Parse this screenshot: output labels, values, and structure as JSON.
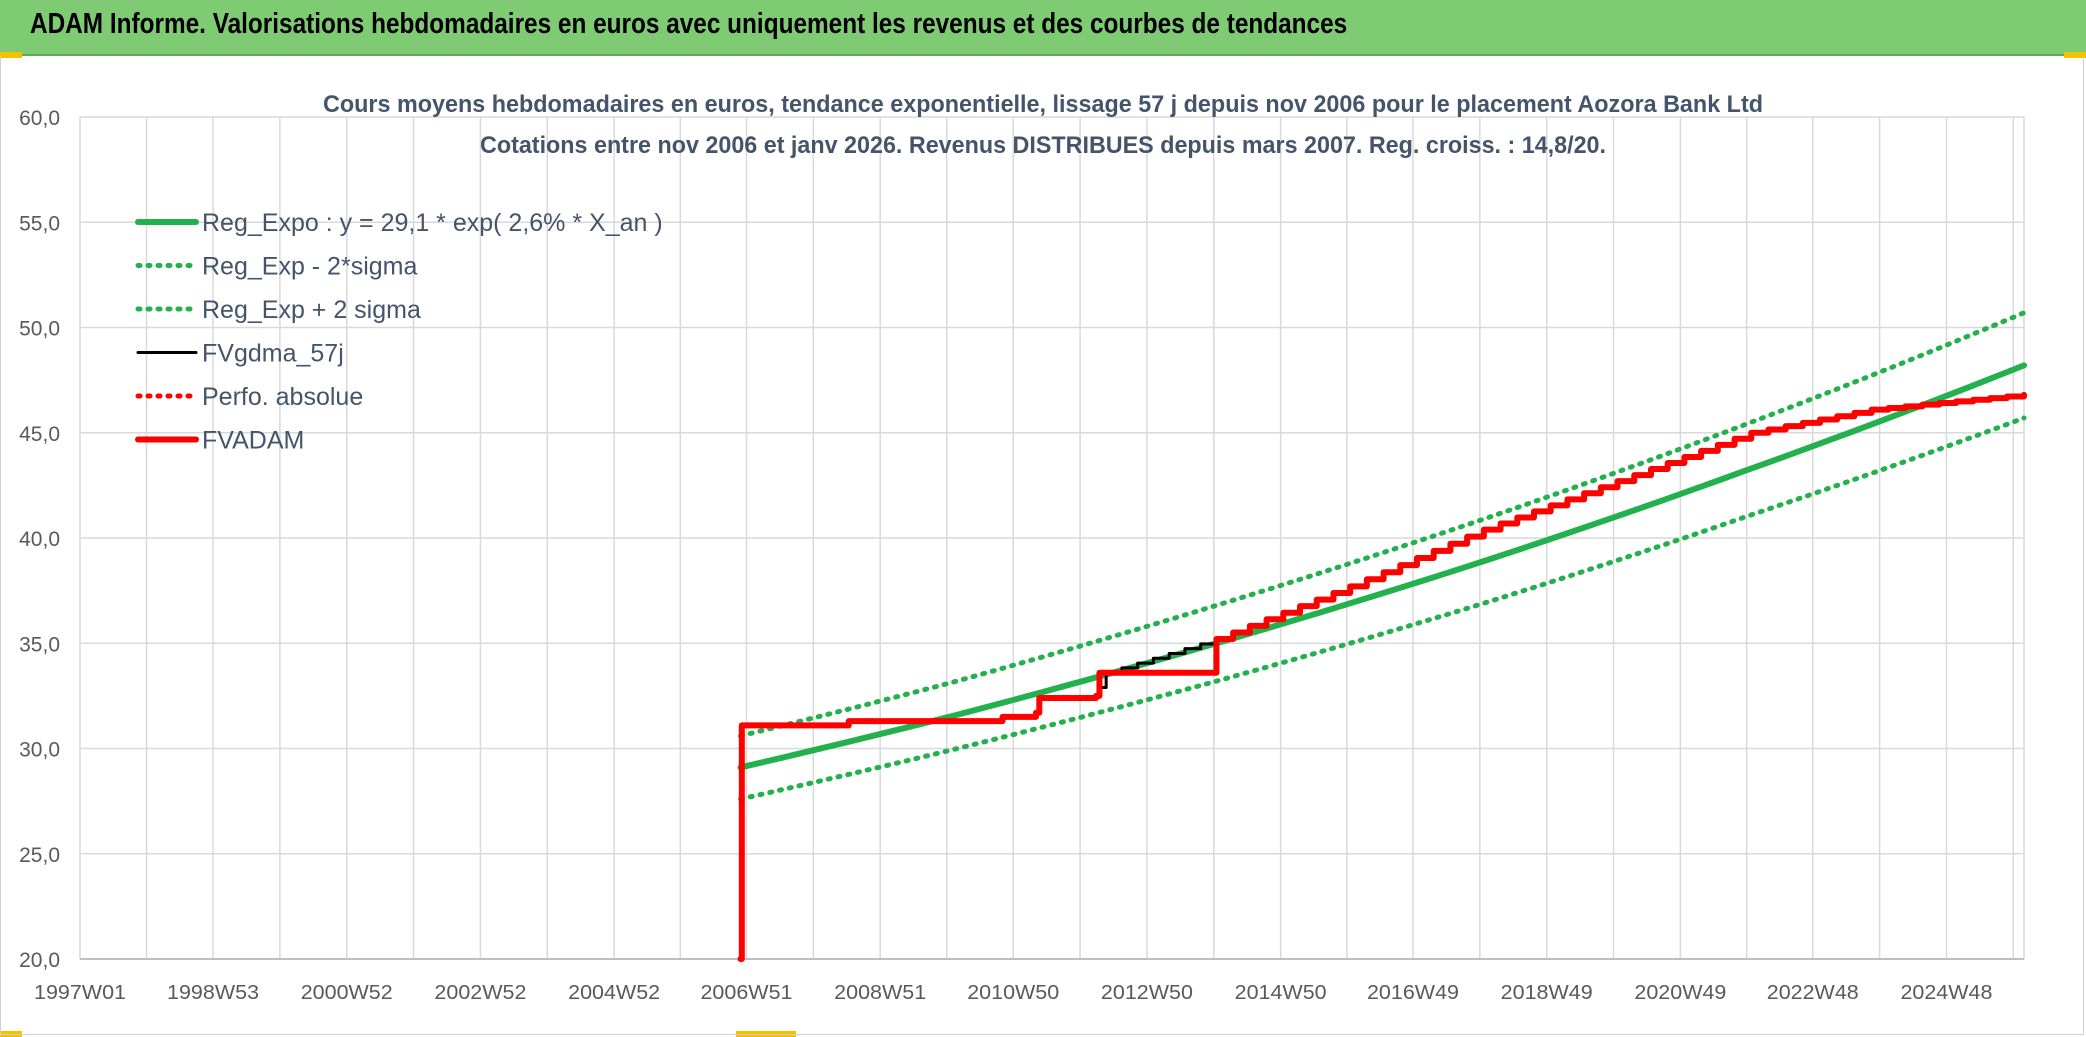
{
  "banner": {
    "title": "ADAM Informe. Valorisations hebdomadaires en euros avec uniquement les revenus et des courbes de tendances"
  },
  "colors": {
    "green": "#22b14c",
    "red": "#ff0000",
    "black": "#000000",
    "banner": "#7ecb73",
    "grid": "#d9d9d9"
  },
  "chart_data": {
    "type": "line",
    "title": "Cours moyens hebdomadaires en euros, tendance exponentielle, lissage 57 j depuis nov 2006 pour le placement Aozora Bank Ltd",
    "subtitle": "Cotations entre nov 2006 et janv 2026. Revenus DISTRIBUES depuis mars 2007. Reg. croiss. : 14,8/20.",
    "xlabel": "",
    "ylabel": "",
    "ylim": [
      20,
      60
    ],
    "xlim": [
      1997.0,
      2026.08
    ],
    "grid": true,
    "legend_position": "top-left",
    "y_ticks": [
      "60,0",
      "55,0",
      "50,0",
      "45,0",
      "40,0",
      "35,0",
      "30,0",
      "25,0",
      "20,0"
    ],
    "x_ticks": [
      {
        "label": "1997W01",
        "x": 1997.0
      },
      {
        "label": "1998W53",
        "x": 1998.99
      },
      {
        "label": "2000W52",
        "x": 2000.99
      },
      {
        "label": "2002W52",
        "x": 2002.99
      },
      {
        "label": "2004W52",
        "x": 2004.99
      },
      {
        "label": "2006W51",
        "x": 2006.97
      },
      {
        "label": "2008W51",
        "x": 2008.97
      },
      {
        "label": "2010W50",
        "x": 2010.96
      },
      {
        "label": "2012W50",
        "x": 2012.96
      },
      {
        "label": "2014W50",
        "x": 2014.96
      },
      {
        "label": "2016W49",
        "x": 2016.94
      },
      {
        "label": "2018W49",
        "x": 2018.94
      },
      {
        "label": "2020W49",
        "x": 2020.94
      },
      {
        "label": "2022W48",
        "x": 2022.92
      },
      {
        "label": "2024W48",
        "x": 2024.92
      }
    ],
    "series": [
      {
        "name": "Reg_Expo : y = 29,1 * exp( 2,6% *  X_an )",
        "style": "solid-thick",
        "color": "#22b14c",
        "x": [
          2006.88,
          2010,
          2014,
          2018,
          2022,
          2026.08
        ],
        "y": [
          29.1,
          31.5,
          35.0,
          38.9,
          43.3,
          48.2
        ]
      },
      {
        "name": "Reg_Exp - 2*sigma",
        "style": "dotted",
        "color": "#22b14c",
        "x": [
          2006.88,
          2010,
          2014,
          2018,
          2022,
          2026.08
        ],
        "y": [
          27.6,
          29.9,
          33.2,
          36.9,
          41.1,
          45.7
        ]
      },
      {
        "name": "Reg_Exp + 2 sigma",
        "style": "dotted",
        "color": "#22b14c",
        "x": [
          2006.88,
          2010,
          2014,
          2018,
          2022,
          2026.08
        ],
        "y": [
          30.6,
          33.1,
          36.8,
          40.9,
          45.5,
          50.7
        ]
      },
      {
        "name": "FVgdma_57j",
        "style": "solid-thin",
        "color": "#000000",
        "x": [
          2006.88,
          2006.9,
          2008.5,
          2010.8,
          2011.3,
          2011.35,
          2012.2,
          2012.25,
          2012.35,
          2014,
          2016,
          2018,
          2020,
          2022,
          2023.8,
          2026.08
        ],
        "y": [
          20.0,
          31.1,
          31.3,
          31.5,
          31.7,
          32.4,
          32.5,
          32.9,
          33.6,
          35.2,
          37.7,
          40.4,
          42.7,
          45.0,
          46.1,
          46.8
        ]
      },
      {
        "name": "Perfo. absolue",
        "style": "dotted",
        "color": "#ff0000",
        "x": [
          2006.88,
          2006.9,
          2008.5,
          2010.8,
          2011.3,
          2011.35,
          2012.2,
          2012.25,
          2014,
          2016,
          2018,
          2020,
          2022,
          2023.8,
          2026.08
        ],
        "y": [
          20.0,
          31.1,
          31.3,
          31.5,
          31.7,
          32.4,
          32.5,
          33.6,
          35.2,
          37.7,
          40.4,
          42.7,
          45.0,
          46.1,
          46.8
        ]
      },
      {
        "name": "FVADAM",
        "style": "step-thick",
        "color": "#ff0000",
        "x": [
          2006.88,
          2006.9,
          2008.5,
          2010.8,
          2011.3,
          2011.35,
          2012.2,
          2012.25,
          2014,
          2016,
          2018,
          2020,
          2022,
          2023.8,
          2026.08
        ],
        "y": [
          20.0,
          31.1,
          31.3,
          31.5,
          31.7,
          32.4,
          32.5,
          33.6,
          35.2,
          37.7,
          40.4,
          42.7,
          45.0,
          46.1,
          46.8
        ]
      }
    ]
  }
}
